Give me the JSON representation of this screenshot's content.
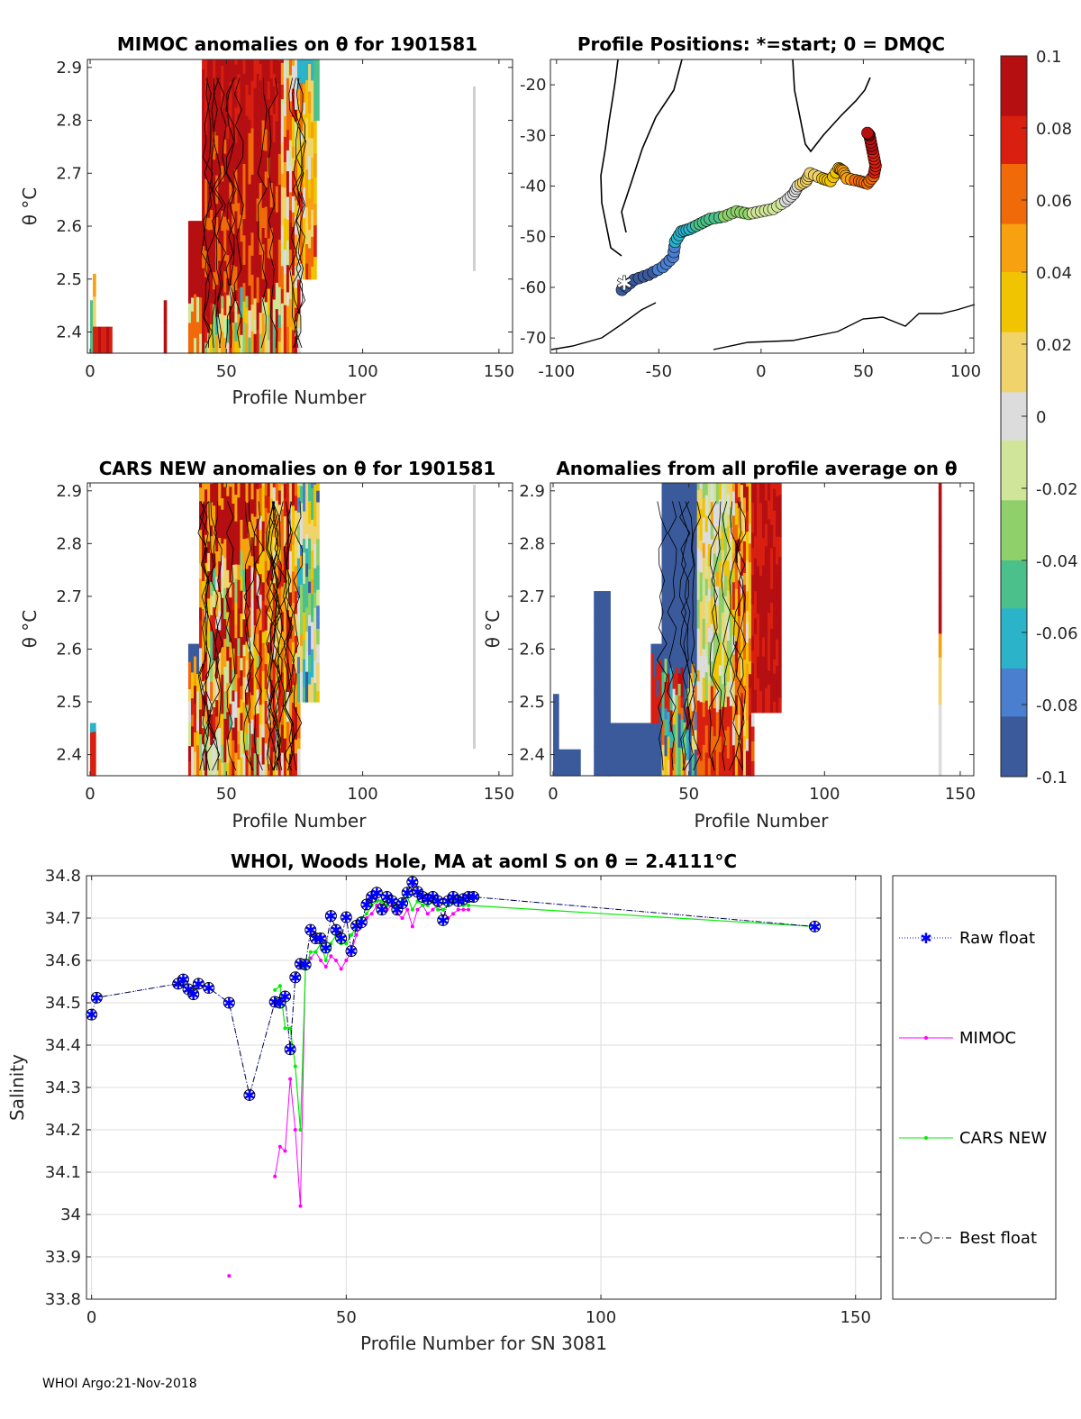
{
  "panels": {
    "mimoc": {
      "title": "MIMOC anomalies on θ  for 1901581",
      "ylabel": "θ °C",
      "xlabel": "Profile Number",
      "xticks": [
        "0",
        "50",
        "100",
        "150"
      ],
      "yticks": [
        "2.4",
        "2.5",
        "2.6",
        "2.7",
        "2.8",
        "2.9"
      ]
    },
    "map": {
      "title": "Profile Positions: *=start; 0 = DMQC",
      "xticks": [
        "-100",
        "-50",
        "0",
        "50",
        "100"
      ],
      "yticks": [
        "-20",
        "-30",
        "-40",
        "-50",
        "-60",
        "-70"
      ]
    },
    "cars": {
      "title": "CARS NEW anomalies on θ for 1901581",
      "ylabel": "θ °C",
      "xlabel": "Profile Number",
      "xticks": [
        "0",
        "50",
        "100",
        "150"
      ],
      "yticks": [
        "2.4",
        "2.5",
        "2.6",
        "2.7",
        "2.8",
        "2.9"
      ]
    },
    "avg": {
      "title": "Anomalies from all profile average on θ",
      "ylabel": "θ °C",
      "xlabel": "Profile Number",
      "xticks": [
        "0",
        "50",
        "100",
        "150"
      ],
      "yticks": [
        "2.4",
        "2.5",
        "2.6",
        "2.7",
        "2.8",
        "2.9"
      ]
    }
  },
  "colorbar": {
    "ticks": [
      "0.1",
      "0.08",
      "0.06",
      "0.04",
      "0.02",
      "0",
      "-0.02",
      "-0.04",
      "-0.06",
      "-0.08",
      "-0.1"
    ],
    "range": [
      -0.1,
      0.1
    ],
    "colors": [
      "#3a5a9c",
      "#4a7ecf",
      "#2bb3c9",
      "#4cc08a",
      "#8fd06a",
      "#d0e59a",
      "#dcdcdc",
      "#f0d36a",
      "#f0c400",
      "#f7a010",
      "#f06a0a",
      "#d81f10",
      "#b50f12"
    ]
  },
  "chart_data": {
    "type": "line",
    "title": "WHOI, Woods Hole, MA at aoml S on θ = 2.4111°C",
    "xlabel": "Profile Number for SN 3081",
    "ylabel": "Salinity",
    "xlim": [
      -1,
      155
    ],
    "ylim": [
      33.8,
      34.8
    ],
    "xticks": [
      "0",
      "50",
      "100",
      "150"
    ],
    "yticks": [
      "33.8",
      "33.9",
      "34",
      "34.1",
      "34.2",
      "34.3",
      "34.4",
      "34.5",
      "34.6",
      "34.7",
      "34.8"
    ],
    "series": [
      {
        "name": "Raw float",
        "color": "#0000ff",
        "x": [
          0,
          1,
          17,
          18,
          19,
          20,
          21,
          23,
          27,
          31,
          36,
          37,
          38,
          39,
          40,
          41,
          42,
          43,
          44,
          45,
          46,
          47,
          48,
          49,
          50,
          51,
          52,
          53,
          54,
          55,
          56,
          57,
          58,
          59,
          60,
          61,
          62,
          63,
          64,
          65,
          66,
          67,
          68,
          69,
          70,
          71,
          72,
          73,
          74,
          75,
          142
        ],
        "values": [
          34.472,
          34.512,
          34.545,
          34.555,
          34.532,
          34.52,
          34.545,
          34.535,
          34.5,
          34.282,
          34.502,
          34.5,
          34.515,
          34.39,
          34.56,
          34.592,
          34.59,
          34.672,
          34.652,
          34.652,
          34.63,
          34.705,
          34.672,
          34.652,
          34.702,
          34.622,
          34.682,
          34.69,
          34.732,
          34.75,
          34.76,
          34.72,
          34.75,
          34.74,
          34.72,
          34.735,
          34.76,
          34.785,
          34.762,
          34.75,
          34.745,
          34.75,
          34.74,
          34.695,
          34.74,
          34.75,
          34.74,
          34.745,
          34.75,
          34.75,
          34.68
        ]
      },
      {
        "name": "MIMOC",
        "color": "#ff00ff",
        "x": [
          27,
          36,
          37,
          38,
          39,
          40,
          41,
          42,
          43,
          44,
          45,
          46,
          47,
          48,
          49,
          50,
          51,
          52,
          53,
          54,
          55,
          56,
          57,
          58,
          59,
          60,
          61,
          62,
          63,
          64,
          65,
          66,
          67,
          68,
          69,
          70,
          71,
          72,
          73,
          74
        ],
        "values": [
          33.855,
          34.09,
          34.16,
          34.15,
          34.32,
          34.2,
          34.02,
          34.59,
          34.605,
          34.62,
          34.6,
          34.585,
          34.61,
          34.6,
          34.58,
          34.6,
          34.62,
          34.66,
          34.69,
          34.7,
          34.71,
          34.73,
          34.74,
          34.72,
          34.73,
          34.71,
          34.7,
          34.72,
          34.68,
          34.72,
          34.73,
          34.71,
          34.72,
          34.73,
          34.72,
          34.7,
          34.71,
          34.72,
          34.72,
          34.72
        ]
      },
      {
        "name": "CARS NEW",
        "color": "#00ee00",
        "x": [
          0,
          36,
          37,
          38,
          39,
          40,
          41,
          42,
          43,
          44,
          45,
          46,
          47,
          48,
          49,
          50,
          51,
          52,
          53,
          54,
          55,
          56,
          57,
          58,
          59,
          60,
          61,
          62,
          63,
          64,
          65,
          66,
          67,
          68,
          69,
          70,
          71,
          72,
          73,
          74,
          142
        ],
        "values": [
          34.475,
          34.53,
          34.54,
          34.44,
          34.44,
          34.35,
          34.2,
          34.58,
          34.62,
          34.62,
          34.64,
          34.6,
          34.64,
          34.66,
          34.64,
          34.64,
          34.66,
          34.68,
          34.7,
          34.71,
          34.73,
          34.74,
          34.74,
          34.73,
          34.74,
          34.72,
          34.74,
          34.75,
          34.72,
          34.74,
          34.73,
          34.73,
          34.74,
          34.72,
          34.72,
          34.73,
          34.74,
          34.74,
          34.73,
          34.73,
          34.68
        ]
      },
      {
        "name": "Best float",
        "color": "#000000",
        "x": [
          0,
          1,
          17,
          18,
          19,
          20,
          21,
          23,
          27,
          31,
          36,
          37,
          38,
          39,
          40,
          41,
          42,
          43,
          44,
          45,
          46,
          47,
          48,
          49,
          50,
          51,
          52,
          53,
          54,
          55,
          56,
          57,
          58,
          59,
          60,
          61,
          62,
          63,
          64,
          65,
          66,
          67,
          68,
          69,
          70,
          71,
          72,
          73,
          74,
          75,
          142
        ],
        "values": [
          34.472,
          34.512,
          34.545,
          34.555,
          34.532,
          34.52,
          34.545,
          34.535,
          34.5,
          34.282,
          34.502,
          34.5,
          34.515,
          34.39,
          34.56,
          34.592,
          34.59,
          34.672,
          34.652,
          34.652,
          34.63,
          34.705,
          34.672,
          34.652,
          34.702,
          34.622,
          34.682,
          34.69,
          34.732,
          34.75,
          34.76,
          34.72,
          34.75,
          34.74,
          34.72,
          34.735,
          34.76,
          34.785,
          34.762,
          34.75,
          34.745,
          34.75,
          34.74,
          34.695,
          34.74,
          34.75,
          34.74,
          34.745,
          34.75,
          34.75,
          34.68
        ]
      }
    ]
  },
  "legend": [
    "Raw float",
    "MIMOC",
    "CARS NEW",
    "Best float"
  ],
  "footer": "WHOI Argo:21-Nov-2018"
}
